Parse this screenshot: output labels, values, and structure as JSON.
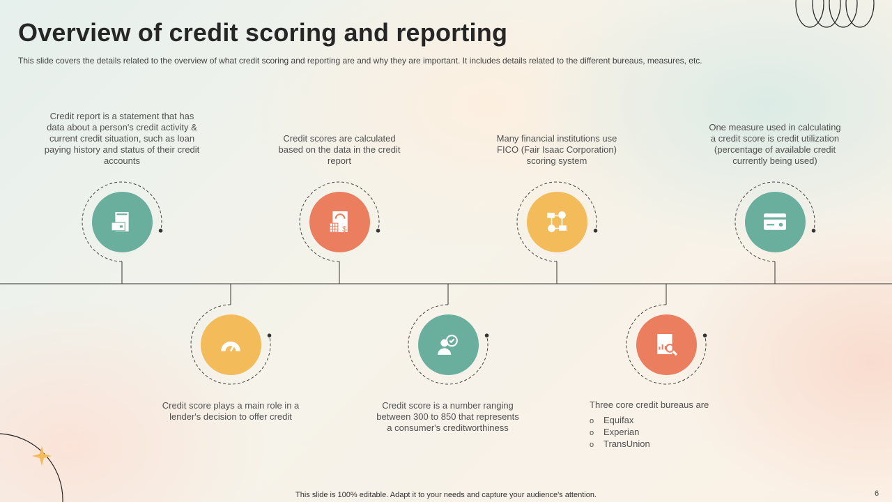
{
  "title": "Overview of credit scoring and reporting",
  "subtitle": "This slide covers the details related to the overview of what credit scoring and reporting are and why they are important. It includes details related to the different bureaus, measures, etc.",
  "colors": {
    "teal": "#6aaf9e",
    "coral": "#ec7e60",
    "yellow": "#f3bb5a",
    "line": "#333333"
  },
  "top_items": [
    {
      "text": "Credit report is a statement that has data about a person's credit activity & current credit situation, such as loan paying history and status of  their credit accounts",
      "icon": "credit-report-icon",
      "color": "#6aaf9e"
    },
    {
      "text": "Credit scores are calculated based on the data in the credit report",
      "icon": "score-calculator-icon",
      "color": "#ec7e60"
    },
    {
      "text": "Many financial institutions use FICO (Fair Isaac Corporation) scoring system",
      "icon": "financial-network-icon",
      "color": "#f3bb5a"
    },
    {
      "text": "One measure used in calculating a credit score is credit utilization (percentage of available credit currently being used)",
      "icon": "credit-card-icon",
      "color": "#6aaf9e"
    }
  ],
  "bottom_items": [
    {
      "text": "Credit score plays a main role in a lender's decision to offer credit",
      "icon": "gauge-icon",
      "color": "#f3bb5a"
    },
    {
      "text": "Credit score is a number ranging between 300 to 850 that represents a consumer's creditworthiness",
      "icon": "user-target-icon",
      "color": "#6aaf9e"
    },
    {
      "text": "Three core credit bureaus are",
      "icon": "report-search-icon",
      "color": "#ec7e60",
      "bullets": [
        "Equifax",
        "Experian",
        "TransUnion"
      ]
    }
  ],
  "footer": "This slide is 100% editable. Adapt it to your needs and capture your audience's attention.",
  "page_number": "6"
}
